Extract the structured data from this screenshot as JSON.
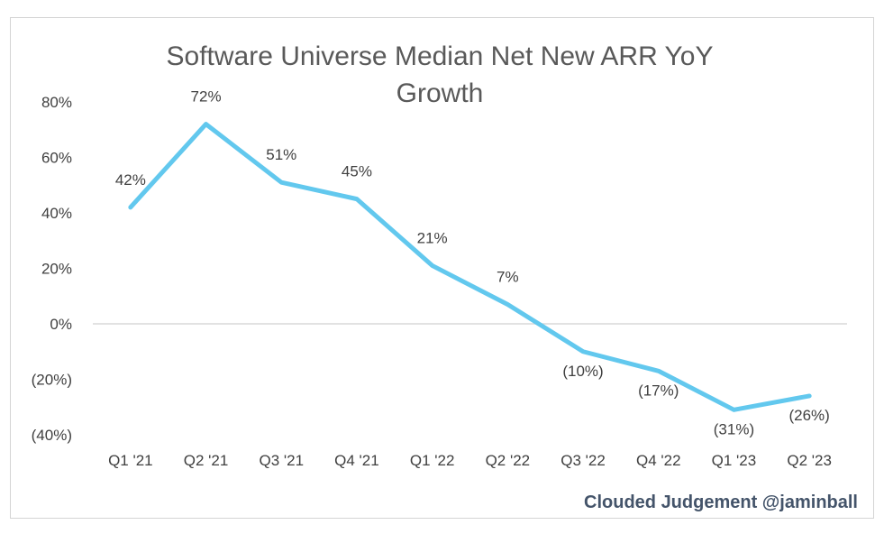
{
  "chart_data": {
    "type": "line",
    "title_lines": [
      "Software Universe Median Net New ARR YoY",
      "Growth"
    ],
    "categories": [
      "Q1 '21",
      "Q2 '21",
      "Q3 '21",
      "Q4 '21",
      "Q1 '22",
      "Q2 '22",
      "Q3 '22",
      "Q4 '22",
      "Q1 '23",
      "Q2 '23"
    ],
    "values": [
      42,
      72,
      51,
      45,
      21,
      7,
      -10,
      -17,
      -31,
      -26
    ],
    "data_labels": [
      "42%",
      "72%",
      "51%",
      "45%",
      "21%",
      "7%",
      "(10%)",
      "(17%)",
      "(31%)",
      "(26%)"
    ],
    "yticks": [
      80,
      60,
      40,
      20,
      0,
      -20,
      -40
    ],
    "ytick_labels": [
      "80%",
      "60%",
      "40%",
      "20%",
      "0%",
      "(20%)",
      "(40%)"
    ],
    "ylim": [
      -40,
      80
    ],
    "line_color": "#62c8ee",
    "zero_line_color": "#d9d9d9",
    "grid": false,
    "legend": "none",
    "watermark": "Clouded Judgement @jaminball"
  }
}
